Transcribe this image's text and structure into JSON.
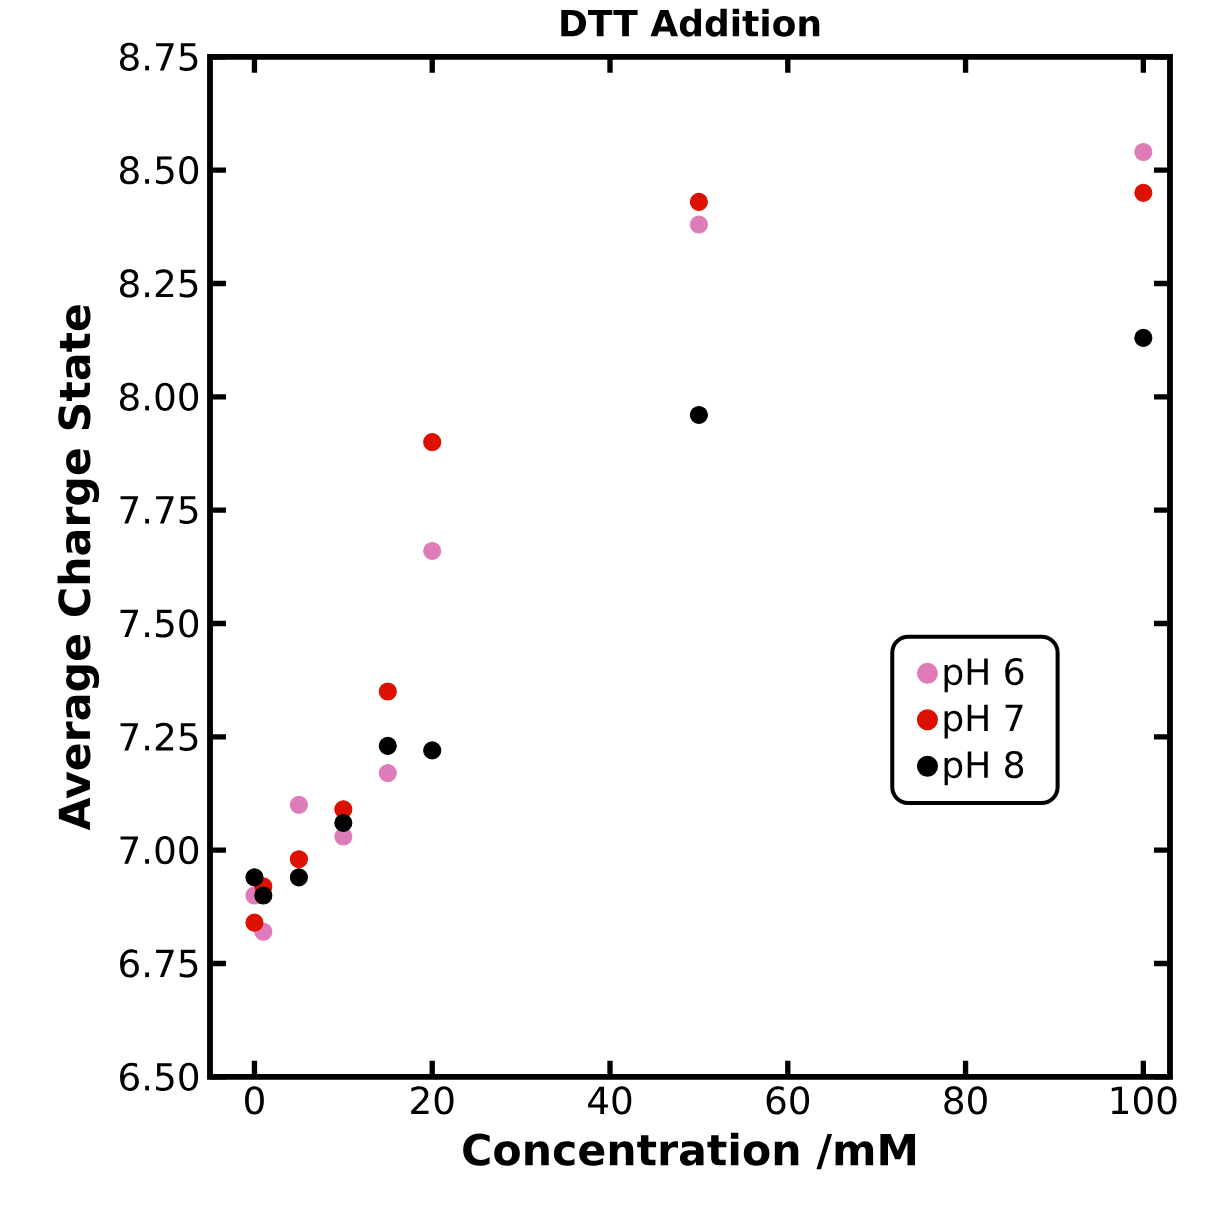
{
  "chart_data": {
    "type": "scatter",
    "title": "DTT Addition",
    "xlabel": "Concentration /mM",
    "ylabel": "Average Charge State",
    "x": [
      0,
      1,
      5,
      10,
      15,
      20,
      50,
      100
    ],
    "series": [
      {
        "name": "pH 6",
        "color": "#de7bb9",
        "values": [
          6.9,
          6.82,
          7.1,
          7.03,
          7.17,
          7.66,
          8.38,
          8.54
        ]
      },
      {
        "name": "pH 7",
        "color": "#dd1100",
        "values": [
          6.84,
          6.92,
          6.98,
          7.09,
          7.35,
          7.9,
          8.43,
          8.45
        ]
      },
      {
        "name": "pH 8",
        "color": "#000000",
        "values": [
          6.94,
          6.9,
          6.94,
          7.06,
          7.23,
          7.22,
          7.96,
          8.13
        ]
      }
    ],
    "xlim": [
      -5,
      103
    ],
    "xticks": [
      0,
      20,
      40,
      60,
      80,
      100
    ],
    "ylim": [
      6.5,
      8.75
    ],
    "yticks": [
      {
        "value": 6.5,
        "label": "6.50"
      },
      {
        "value": 6.75,
        "label": "6.75"
      },
      {
        "value": 7.0,
        "label": "7.00"
      },
      {
        "value": 7.25,
        "label": "7.25"
      },
      {
        "value": 7.5,
        "label": "7.50"
      },
      {
        "value": 7.75,
        "label": "7.75"
      },
      {
        "value": 8.0,
        "label": "8.00"
      },
      {
        "value": 8.25,
        "label": "8.25"
      },
      {
        "value": 8.5,
        "label": "8.50"
      },
      {
        "value": 8.75,
        "label": "8.75"
      }
    ],
    "legend": "right",
    "marker": "circle"
  }
}
